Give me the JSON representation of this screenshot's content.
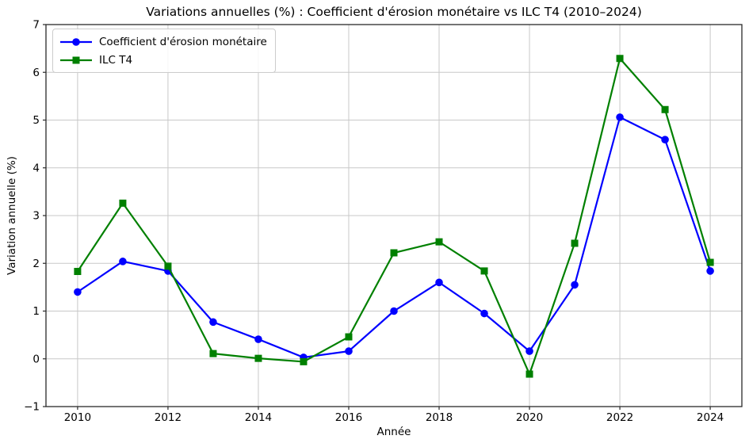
{
  "chart_data": {
    "type": "line",
    "title": "Variations annuelles (%) : Coefficient d'érosion monétaire vs ILC T4 (2010–2024)",
    "xlabel": "Année",
    "ylabel": "Variation annuelle (%)",
    "x": [
      2010,
      2011,
      2012,
      2013,
      2014,
      2015,
      2016,
      2017,
      2018,
      2019,
      2020,
      2021,
      2022,
      2023,
      2024
    ],
    "series": [
      {
        "name": "Coefficient d'érosion monétaire",
        "color": "#0000ff",
        "marker": "circle",
        "values": [
          1.4,
          2.04,
          1.84,
          0.77,
          0.41,
          0.03,
          0.16,
          1.0,
          1.6,
          0.95,
          0.16,
          1.55,
          5.06,
          4.59,
          1.84
        ]
      },
      {
        "name": "ILC T4",
        "color": "#008000",
        "marker": "square",
        "values": [
          1.83,
          3.26,
          1.94,
          0.11,
          0.01,
          -0.06,
          0.46,
          2.22,
          2.45,
          1.84,
          -0.32,
          2.42,
          6.29,
          5.22,
          2.02
        ]
      }
    ],
    "xlim": [
      2009.3,
      2024.7
    ],
    "ylim": [
      -1,
      7
    ],
    "xticks": [
      2010,
      2012,
      2014,
      2016,
      2018,
      2020,
      2022,
      2024
    ],
    "yticks": [
      -1,
      0,
      1,
      2,
      3,
      4,
      5,
      6,
      7
    ],
    "grid": true,
    "legend_position": "upper-left",
    "colors": {
      "grid": "#c8c8c8",
      "frame": "#2a2a2a",
      "background": "#ffffff",
      "text": "#000000"
    }
  }
}
